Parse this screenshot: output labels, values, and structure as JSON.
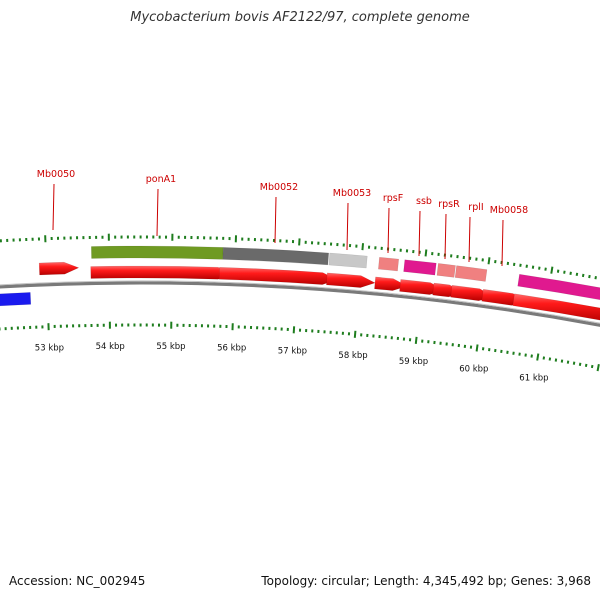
{
  "title": "Mycobacterium bovis AF2122/97, complete genome",
  "footer": {
    "accession": "Accession: NC_002945",
    "summary": "Topology: circular; Length: 4,345,492 bp; Genes: 3,968"
  },
  "axis": {
    "tick_labels": [
      "53 kbp",
      "54 kbp",
      "55 kbp",
      "56 kbp",
      "57 kbp",
      "58 kbp",
      "59 kbp",
      "60 kbp",
      "61 kbp"
    ]
  },
  "gene_labels": [
    "Mb0050",
    "ponA1",
    "Mb0052",
    "Mb0053",
    "rpsF",
    "ssb",
    "rpsR",
    "rplI",
    "Mb0058"
  ],
  "colors": {
    "gene": "#ff1a1a",
    "cds_olive": "#6f9a22",
    "cds_gray": "#6a6a6a",
    "cds_lightgray": "#c8c8c8",
    "cds_pink": "#f08080",
    "cds_magenta": "#e0198f",
    "other_blue": "#1a1aee",
    "tick": "#1e7d1e",
    "label": "#cc0000",
    "backbone": "#7a7a7a"
  }
}
